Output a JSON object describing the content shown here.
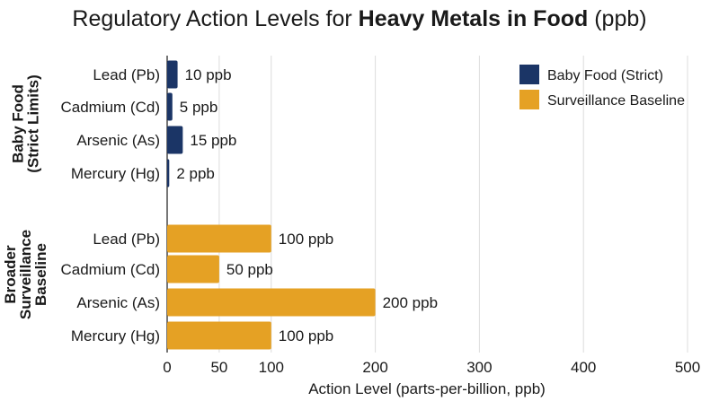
{
  "chart_data": {
    "type": "bar",
    "orientation": "horizontal",
    "title": {
      "prefix": "Regulatory Action Levels for",
      "bold": "Heavy Metals in Food",
      "suffix": "(ppb)"
    },
    "xlabel": "Action Level (parts-per-billion, ppb)",
    "xlim": [
      0,
      500
    ],
    "xticks": [
      0,
      50,
      100,
      200,
      300,
      400,
      500
    ],
    "grid": "vertical",
    "legend_position": "top-right",
    "groups": [
      {
        "label_lines": [
          "Baby Food",
          "(Strict Limits)"
        ],
        "color": "#1b3566",
        "categories": [
          "Lead (Pb)",
          "Cadmium (Cd)",
          "Arsenic (As)",
          "Mercury (Hg)"
        ],
        "values": [
          10,
          5,
          15,
          2
        ],
        "value_labels": [
          "10 ppb",
          "5 ppb",
          "15 ppb",
          "2 ppb"
        ]
      },
      {
        "label_lines": [
          "Broader",
          "Surveillance",
          "Baseline"
        ],
        "color": "#e5a124",
        "categories": [
          "Lead (Pb)",
          "Cadmium (Cd)",
          "Arsenic (As)",
          "Mercury (Hg)"
        ],
        "values": [
          100,
          50,
          200,
          100
        ],
        "value_labels": [
          "100 ppb",
          "50 ppb",
          "200 ppb",
          "100 ppb"
        ]
      }
    ],
    "legend": [
      {
        "name": "Baby Food (Strict)",
        "color": "#1b3566"
      },
      {
        "name": "Surveillance Baseline",
        "color": "#e5a124"
      }
    ]
  }
}
